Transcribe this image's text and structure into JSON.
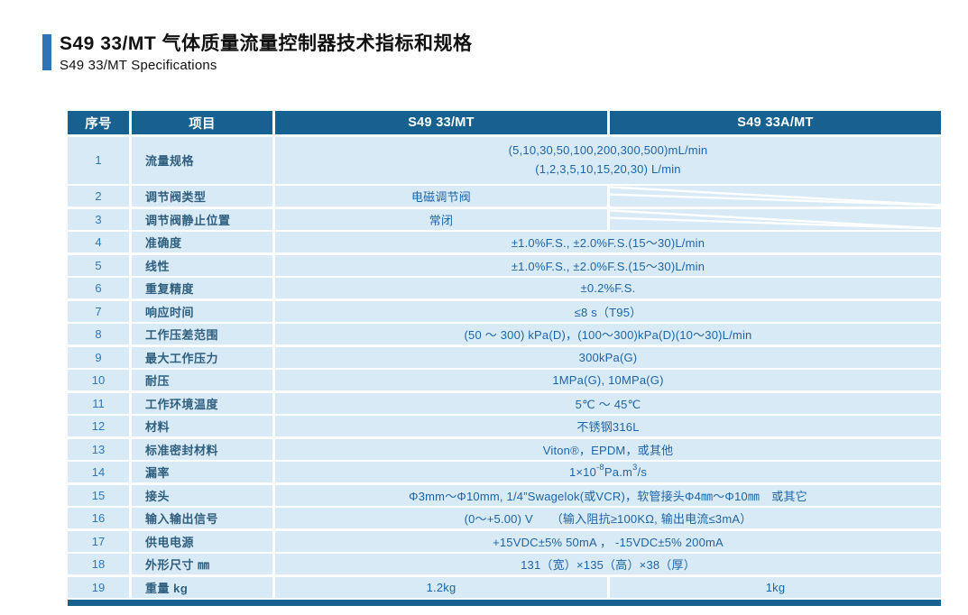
{
  "page": {
    "title": "S49 33/MT 气体质量流量控制器技术指标和规格",
    "subtitle": "S49 33/MT  Specifications"
  },
  "colors": {
    "header_navy": "#16618F",
    "row_light_blue": "#D9EAF7",
    "accent_blue": "#2E75B6",
    "value_text_blue": "#1D64A6",
    "label_text_blue": "#2F5F7E"
  },
  "table": {
    "headers": {
      "seq": "序号",
      "item": "项目",
      "model1": "S49 33/MT",
      "model2": "S49 33A/MT"
    },
    "rows": [
      {
        "seq": "1",
        "item": "流量规格",
        "kind": "merged",
        "lines": [
          "(5,10,30,50,100,200,300,500)mL/min",
          "(1,2,3,5,10,15,20,30)  L/min"
        ]
      },
      {
        "seq": "2",
        "item": "调节阀类型",
        "kind": "col1_na",
        "value": "电磁调节阀"
      },
      {
        "seq": "3",
        "item": "调节阀静止位置",
        "kind": "col1_na",
        "value": "常闭"
      },
      {
        "seq": "4",
        "item": "准确度",
        "kind": "merged",
        "value": "±1.0%F.S.,  ±2.0%F.S.(15～30)L/min"
      },
      {
        "seq": "5",
        "item": "线性",
        "kind": "merged",
        "value": "±1.0%F.S.,  ±2.0%F.S.(15～30)L/min"
      },
      {
        "seq": "6",
        "item": "重复精度",
        "kind": "merged",
        "value": "±0.2%F.S."
      },
      {
        "seq": "7",
        "item": "响应时间",
        "kind": "merged",
        "value": "≤8 s（T95）"
      },
      {
        "seq": "8",
        "item": "工作压差范围",
        "kind": "merged",
        "value": "(50 ～ 300) kPa(D)，(100～300)kPa(D)(10～30)L/min"
      },
      {
        "seq": "9",
        "item": "最大工作压力",
        "kind": "merged",
        "value": "300kPa(G)"
      },
      {
        "seq": "10",
        "item": "耐压",
        "kind": "merged",
        "value": "1MPa(G), 10MPa(G)"
      },
      {
        "seq": "11",
        "item": "工作环境温度",
        "kind": "merged",
        "value": "5℃ ～ 45℃"
      },
      {
        "seq": "12",
        "item": "材料",
        "kind": "merged",
        "value": "不锈钢316L"
      },
      {
        "seq": "13",
        "item": "标准密封材料",
        "kind": "merged",
        "value": "Viton®，EPDM，或其他"
      },
      {
        "seq": "14",
        "item": "漏率",
        "kind": "merged",
        "parts": [
          {
            "t": "1×10"
          },
          {
            "t": "-8",
            "sup": true
          },
          {
            "t": "Pa.m"
          },
          {
            "t": "3",
            "sup": true
          },
          {
            "t": "/s"
          }
        ]
      },
      {
        "seq": "15",
        "item": "接头",
        "kind": "merged",
        "value": "Φ3mm～Φ10mm, 1/4”Swagelok(或VCR)，软管接头Φ4㎜～Φ10㎜　或其它"
      },
      {
        "seq": "16",
        "item": "输入输出信号",
        "kind": "merged",
        "value": "(0～+5.00) V　　（输入阻抗≥100KΩ, 输出电流≤3mA）"
      },
      {
        "seq": "17",
        "item": "供电电源",
        "kind": "merged",
        "value": "+15VDC±5%  50mA ， -15VDC±5%  200mA"
      },
      {
        "seq": "18",
        "item": "外形尺寸 ㎜",
        "kind": "merged",
        "value": "131（宽）×135（高）×38（厚）"
      },
      {
        "seq": "19",
        "item": "重量  kg",
        "kind": "split",
        "value1": "1.2kg",
        "value2": "1kg"
      }
    ]
  }
}
